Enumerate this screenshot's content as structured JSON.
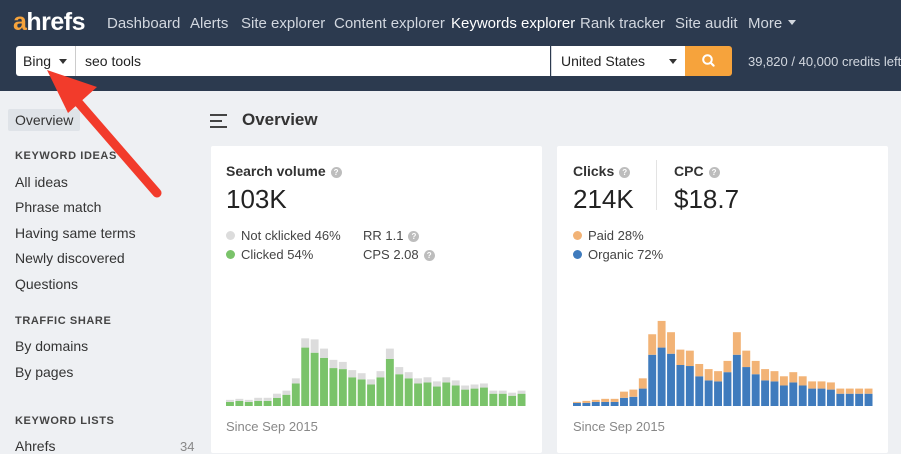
{
  "nav": {
    "logo_accent": "a",
    "logo_rest": "hrefs",
    "items": [
      {
        "label": "Dashboard"
      },
      {
        "label": "Alerts"
      },
      {
        "label": "Site explorer"
      },
      {
        "label": "Content explorer"
      },
      {
        "label": "Keywords explorer",
        "active": true
      },
      {
        "label": "Rank tracker"
      },
      {
        "label": "Site audit"
      },
      {
        "label": "More"
      }
    ]
  },
  "search": {
    "engine": "Bing",
    "query": "seo tools",
    "country": "United States",
    "go_icon": "search-icon",
    "credits": "39,820 / 40,000 credits left"
  },
  "sidebar": {
    "overview": "Overview",
    "keyword_ideas_heading": "KEYWORD IDEAS",
    "keyword_ideas": [
      "All ideas",
      "Phrase match",
      "Having same terms",
      "Newly discovered",
      "Questions"
    ],
    "traffic_share_heading": "TRAFFIC SHARE",
    "traffic_share": [
      "By domains",
      "By pages"
    ],
    "keyword_lists_heading": "KEYWORD LISTS",
    "keyword_lists": [
      {
        "label": "Ahrefs",
        "count": "34"
      }
    ]
  },
  "main": {
    "title": "Overview"
  },
  "volume_card": {
    "label": "Search volume",
    "value": "103K",
    "legend_not_clicked": "Not cklicked 46%",
    "legend_clicked": "Clicked 54%",
    "rr": "RR 1.1",
    "cps": "CPS 2.08",
    "since": "Since Sep 2015"
  },
  "clicks_card": {
    "clicks_label": "Clicks",
    "clicks_value": "214K",
    "cpc_label": "CPC",
    "cpc_value": "$18.7",
    "legend_paid": "Paid 28%",
    "legend_organic": "Organic 72%",
    "since": "Since Sep 2015"
  },
  "colors": {
    "nav_bg": "#2c3a4f",
    "accent": "#f6a33c",
    "clicked": "#7ac36a",
    "not_clicked": "#dcdcdc",
    "paid": "#f2b376",
    "organic": "#3f7bbd"
  },
  "chart_data": [
    {
      "type": "bar",
      "stacked": true,
      "series": [
        {
          "name": "Clicked",
          "values": [
            4,
            5,
            4,
            5,
            5,
            8,
            11,
            22,
            57,
            52,
            47,
            37,
            36,
            28,
            26,
            21,
            28,
            46,
            31,
            27,
            22,
            23,
            19,
            23,
            20,
            16,
            17,
            18,
            12,
            12,
            10,
            12
          ]
        },
        {
          "name": "Not cklicked",
          "values": [
            2,
            2,
            2,
            3,
            3,
            4,
            4,
            5,
            9,
            13,
            9,
            8,
            7,
            7,
            6,
            5,
            6,
            10,
            7,
            6,
            5,
            5,
            5,
            5,
            5,
            4,
            4,
            4,
            3,
            3,
            3,
            3
          ]
        }
      ],
      "ylim": [
        0,
        120
      ]
    },
    {
      "type": "bar",
      "stacked": true,
      "series": [
        {
          "name": "Organic",
          "values": [
            3,
            3,
            4,
            4,
            4,
            8,
            9,
            17,
            50,
            57,
            51,
            40,
            39,
            29,
            25,
            24,
            33,
            50,
            38,
            31,
            25,
            24,
            20,
            23,
            20,
            17,
            17,
            16,
            12,
            12,
            12,
            12
          ]
        },
        {
          "name": "Paid",
          "values": [
            1,
            2,
            2,
            3,
            3,
            6,
            7,
            10,
            20,
            26,
            21,
            15,
            15,
            12,
            11,
            10,
            11,
            22,
            16,
            13,
            11,
            10,
            9,
            10,
            9,
            7,
            7,
            7,
            5,
            5,
            5,
            5
          ]
        }
      ],
      "ylim": [
        0,
        120
      ]
    }
  ]
}
